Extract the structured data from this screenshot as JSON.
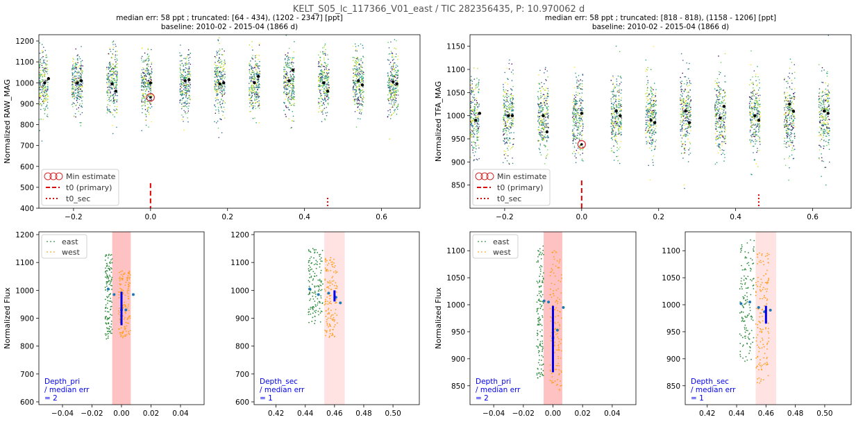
{
  "figure": {
    "suptitle": "KELT_S05_lc_117366_V01_east / TIC 282356435, P: 10.970062 d"
  },
  "colors": {
    "east": "#2e8b3c",
    "west": "#ff9f1a",
    "min_marker": "#d62728",
    "t0_line": "#e00000",
    "depth_bar": "#0000ee",
    "binned": "#1f77b4",
    "pri_band": "#ff9999",
    "sec_band": "#ffd6d6"
  },
  "legend_top": [
    "Min estimate",
    "t0 (primary)",
    "t0_sec"
  ],
  "legend_bottom": [
    "east",
    "west"
  ],
  "chart_data": [
    {
      "id": "raw_phase",
      "type": "scatter",
      "title": "median err: 58 ppt ; truncated: [64 - 434), (1202 - 2347] [ppt]",
      "subtitle": "baseline: 2010-02 - 2015-04 (1866 d)",
      "xlabel": "",
      "ylabel": "Normalized RAW_MAG",
      "xlim": [
        -0.29,
        0.7
      ],
      "ylim": [
        400,
        1230
      ],
      "xticks": [
        -0.2,
        0.0,
        0.2,
        0.4,
        0.6
      ],
      "xtick_labels": [
        "−0.2",
        "0.0",
        "0.2",
        "0.4",
        "0.6"
      ],
      "yticks": [
        400,
        500,
        600,
        700,
        800,
        900,
        1000,
        1100,
        1200
      ],
      "cluster_phases": [
        -0.28,
        -0.19,
        -0.1,
        -0.01,
        0.09,
        0.18,
        0.27,
        0.36,
        0.45,
        0.54,
        0.63
      ],
      "cluster_center": 1000,
      "cluster_halfheight": 160,
      "binned_phases": [
        -0.275,
        -0.265,
        -0.19,
        -0.18,
        -0.1,
        -0.09,
        0.0,
        0.09,
        0.1,
        0.18,
        0.19,
        0.27,
        0.28,
        0.36,
        0.37,
        0.45,
        0.46,
        0.54,
        0.55,
        0.63,
        0.64
      ],
      "binned_values": [
        1000,
        1020,
        1000,
        1010,
        995,
        960,
        1000,
        1010,
        1015,
        995,
        1000,
        1000,
        1030,
        1010,
        1060,
        1000,
        960,
        1010,
        990,
        1005,
        995
      ],
      "min_estimate": {
        "x": 0.0,
        "y": 930
      },
      "t0_primary": {
        "x": 0.0,
        "ymax": 520
      },
      "t0_sec": {
        "x": 0.46,
        "ymax": 450
      }
    },
    {
      "id": "tfa_phase",
      "type": "scatter",
      "title": "median err: 58 ppt ; truncated: [818 - 818), (1158 - 1206] [ppt]",
      "subtitle": "baseline: 2010-02 - 2015-04 (1866 d)",
      "xlabel": "",
      "ylabel": "Normalized TFA_MAG",
      "xlim": [
        -0.29,
        0.7
      ],
      "ylim": [
        800,
        1175
      ],
      "xticks": [
        -0.2,
        0.0,
        0.2,
        0.4,
        0.6
      ],
      "xtick_labels": [
        "−0.2",
        "0.0",
        "0.2",
        "0.4",
        "0.6"
      ],
      "yticks": [
        850,
        900,
        950,
        1000,
        1050,
        1100,
        1150
      ],
      "cluster_phases": [
        -0.28,
        -0.19,
        -0.1,
        -0.01,
        0.09,
        0.18,
        0.27,
        0.36,
        0.45,
        0.54,
        0.63
      ],
      "cluster_center": 1000,
      "cluster_halfheight": 90,
      "binned_phases": [
        -0.275,
        -0.265,
        -0.19,
        -0.18,
        -0.1,
        -0.09,
        0.0,
        0.09,
        0.1,
        0.18,
        0.19,
        0.27,
        0.28,
        0.36,
        0.37,
        0.45,
        0.46,
        0.54,
        0.55,
        0.63,
        0.64
      ],
      "binned_values": [
        990,
        1005,
        1000,
        1000,
        1000,
        965,
        1005,
        1010,
        1000,
        990,
        985,
        1010,
        985,
        995,
        1020,
        1000,
        990,
        1025,
        1010,
        1010,
        1005
      ],
      "min_estimate": {
        "x": 0.0,
        "y": 938
      },
      "t0_primary": {
        "x": 0.0,
        "ymax": 860
      },
      "t0_sec": {
        "x": 0.46,
        "ymax": 830
      }
    },
    {
      "id": "raw_primary_zoom",
      "type": "scatter",
      "ylabel": "Normalized Flux",
      "xlim": [
        -0.056,
        0.056
      ],
      "ylim": [
        590,
        1210
      ],
      "xticks": [
        -0.04,
        -0.02,
        0.0,
        0.02,
        0.04
      ],
      "xtick_labels": [
        "−0.04",
        "−0.02",
        "0.00",
        "0.02",
        "0.04"
      ],
      "yticks": [
        600,
        700,
        800,
        900,
        1000,
        1100,
        1200
      ],
      "band": [
        -0.0063,
        0.0063
      ],
      "band_kind": "primary",
      "east_x": [
        -0.011,
        -0.0063
      ],
      "east_y": [
        820,
        1130
      ],
      "west_x": [
        -0.002,
        0.006
      ],
      "west_y": [
        830,
        1070
      ],
      "binned_x": [
        -0.009,
        -0.005,
        0.0,
        0.003,
        0.008
      ],
      "binned_y": [
        1005,
        985,
        930,
        930,
        985
      ],
      "depth_bar": {
        "x": 0.0,
        "y0": 875,
        "y1": 995
      },
      "note": "Depth_pri\n / median err\n = 2"
    },
    {
      "id": "raw_secondary_zoom",
      "type": "scatter",
      "xlim": [
        0.405,
        0.518
      ],
      "ylim": [
        590,
        1210
      ],
      "xticks": [
        0.42,
        0.44,
        0.46,
        0.48,
        0.5
      ],
      "xtick_labels": [
        "0.42",
        "0.44",
        "0.46",
        "0.48",
        "0.50"
      ],
      "yticks": [
        600,
        700,
        800,
        900,
        1000,
        1100,
        1200
      ],
      "band": [
        0.453,
        0.467
      ],
      "band_kind": "secondary",
      "east_x": [
        0.442,
        0.452
      ],
      "east_y": [
        880,
        1150
      ],
      "west_x": [
        0.453,
        0.462
      ],
      "west_y": [
        830,
        1120
      ],
      "binned_x": [
        0.443,
        0.449,
        0.456,
        0.461,
        0.464
      ],
      "binned_y": [
        1005,
        985,
        990,
        975,
        955
      ],
      "depth_bar": {
        "x": 0.46,
        "y0": 960,
        "y1": 1000
      },
      "note": "Depth_sec\n / median err\n = 1"
    },
    {
      "id": "tfa_primary_zoom",
      "type": "scatter",
      "ylabel": "Normalized Flux",
      "xlim": [
        -0.056,
        0.056
      ],
      "ylim": [
        815,
        1135
      ],
      "xticks": [
        -0.04,
        -0.02,
        0.0,
        0.02,
        0.04
      ],
      "xtick_labels": [
        "−0.04",
        "−0.02",
        "0.00",
        "0.02",
        "0.04"
      ],
      "yticks": [
        850,
        900,
        950,
        1000,
        1050,
        1100
      ],
      "band": [
        -0.0063,
        0.0063
      ],
      "band_kind": "primary",
      "east_x": [
        -0.011,
        -0.0063
      ],
      "east_y": [
        860,
        1110
      ],
      "west_x": [
        -0.002,
        0.006
      ],
      "west_y": [
        840,
        1100
      ],
      "binned_x": [
        -0.006,
        -0.003,
        0.0,
        0.003,
        0.007
      ],
      "binned_y": [
        1007,
        1005,
        938,
        953,
        995
      ],
      "depth_bar": {
        "x": 0.0,
        "y0": 875,
        "y1": 998
      },
      "note": "Depth_pri\n / median err\n = 2"
    },
    {
      "id": "tfa_secondary_zoom",
      "type": "scatter",
      "xlim": [
        0.405,
        0.518
      ],
      "ylim": [
        815,
        1135
      ],
      "xticks": [
        0.42,
        0.44,
        0.46,
        0.48,
        0.5
      ],
      "xtick_labels": [
        "0.42",
        "0.44",
        "0.46",
        "0.48",
        "0.50"
      ],
      "yticks": [
        850,
        900,
        950,
        1000,
        1050,
        1100
      ],
      "band": [
        0.453,
        0.467
      ],
      "band_kind": "secondary",
      "east_x": [
        0.442,
        0.452
      ],
      "east_y": [
        895,
        1120
      ],
      "west_x": [
        0.453,
        0.462
      ],
      "west_y": [
        855,
        1100
      ],
      "binned_x": [
        0.443,
        0.449,
        0.455,
        0.459,
        0.463
      ],
      "binned_y": [
        1002,
        1005,
        995,
        987,
        990
      ],
      "depth_bar": {
        "x": 0.46,
        "y0": 965,
        "y1": 998
      },
      "note": "Depth_sec\n / median err\n = 1"
    }
  ]
}
